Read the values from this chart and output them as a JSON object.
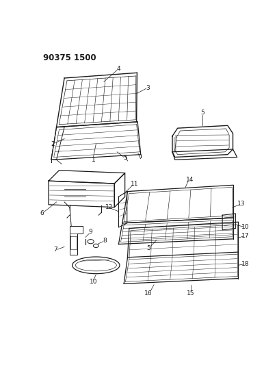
{
  "title": "90375 1500",
  "bg_color": "#ffffff",
  "line_color": "#1a1a1a",
  "fig_width": 4.06,
  "fig_height": 5.33,
  "dpi": 100
}
